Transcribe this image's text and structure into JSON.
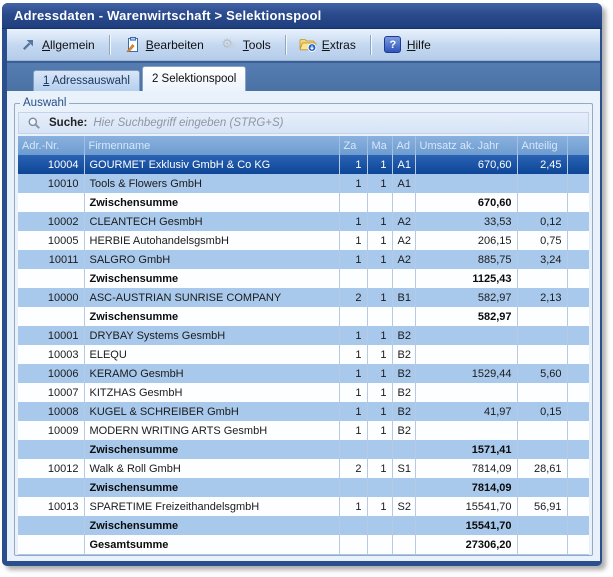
{
  "window": {
    "title": "Adressdaten - Warenwirtschaft > Selektionspool"
  },
  "toolbar": {
    "items": [
      {
        "label": "Allgemein",
        "icon": "arrow-ne-icon",
        "separator_before": false
      },
      {
        "label": "Bearbeiten",
        "icon": "clipboard-icon",
        "separator_before": true
      },
      {
        "label": "Tools",
        "icon": "gears-icon",
        "separator_before": false
      },
      {
        "label": "Extras",
        "icon": "folder-icon",
        "separator_before": true
      },
      {
        "label": "Hilfe",
        "icon": "help-icon",
        "separator_before": true
      }
    ]
  },
  "tabs": [
    {
      "label": "1 Adressauswahl",
      "active": false
    },
    {
      "label": "2 Selektionspool",
      "active": true
    }
  ],
  "groupbox": {
    "legend": "Auswahl"
  },
  "search": {
    "label": "Suche:",
    "placeholder": "Hier Suchbegriff eingeben (STRG+S)"
  },
  "table": {
    "columns": [
      "Adr.-Nr.",
      "Firmenname",
      "Za",
      "Ma",
      "Ad",
      "Umsatz ak. Jahr",
      "Anteilig",
      ""
    ],
    "rows": [
      {
        "kind": "data",
        "selected": true,
        "nr": "10004",
        "name": "GOURMET Exklusiv GmbH & Co KG",
        "za": "1",
        "ma": "1",
        "ad": "A1",
        "umsatz": "670,60",
        "anteilig": "2,45"
      },
      {
        "kind": "data",
        "selected": false,
        "nr": "10010",
        "name": "Tools & Flowers GmbH",
        "za": "1",
        "ma": "1",
        "ad": "A1",
        "umsatz": "",
        "anteilig": ""
      },
      {
        "kind": "subtotal",
        "label": "Zwischensumme",
        "umsatz": "670,60"
      },
      {
        "kind": "data",
        "selected": false,
        "nr": "10002",
        "name": "CLEANTECH GesmbH",
        "za": "1",
        "ma": "1",
        "ad": "A2",
        "umsatz": "33,53",
        "anteilig": "0,12"
      },
      {
        "kind": "data",
        "selected": false,
        "nr": "10005",
        "name": "HERBIE AutohandelsgsmbH",
        "za": "1",
        "ma": "1",
        "ad": "A2",
        "umsatz": "206,15",
        "anteilig": "0,75"
      },
      {
        "kind": "data",
        "selected": false,
        "nr": "10011",
        "name": "SALGRO GmbH",
        "za": "1",
        "ma": "1",
        "ad": "A2",
        "umsatz": "885,75",
        "anteilig": "3,24"
      },
      {
        "kind": "subtotal",
        "label": "Zwischensumme",
        "umsatz": "1125,43"
      },
      {
        "kind": "data",
        "selected": false,
        "nr": "10000",
        "name": "ASC-AUSTRIAN SUNRISE COMPANY",
        "za": "2",
        "ma": "1",
        "ad": "B1",
        "umsatz": "582,97",
        "anteilig": "2,13"
      },
      {
        "kind": "subtotal",
        "label": "Zwischensumme",
        "umsatz": "582,97"
      },
      {
        "kind": "data",
        "selected": false,
        "nr": "10001",
        "name": "DRYBAY Systems GesmbH",
        "za": "1",
        "ma": "1",
        "ad": "B2",
        "umsatz": "",
        "anteilig": ""
      },
      {
        "kind": "data",
        "selected": false,
        "nr": "10003",
        "name": "ELEQU",
        "za": "1",
        "ma": "1",
        "ad": "B2",
        "umsatz": "",
        "anteilig": ""
      },
      {
        "kind": "data",
        "selected": false,
        "nr": "10006",
        "name": "KERAMO GesmbH",
        "za": "1",
        "ma": "1",
        "ad": "B2",
        "umsatz": "1529,44",
        "anteilig": "5,60"
      },
      {
        "kind": "data",
        "selected": false,
        "nr": "10007",
        "name": "KITZHAS GesmbH",
        "za": "1",
        "ma": "1",
        "ad": "B2",
        "umsatz": "",
        "anteilig": ""
      },
      {
        "kind": "data",
        "selected": false,
        "nr": "10008",
        "name": "KUGEL & SCHREIBER GmbH",
        "za": "1",
        "ma": "1",
        "ad": "B2",
        "umsatz": "41,97",
        "anteilig": "0,15"
      },
      {
        "kind": "data",
        "selected": false,
        "nr": "10009",
        "name": "MODERN WRITING ARTS GesmbH",
        "za": "1",
        "ma": "1",
        "ad": "B2",
        "umsatz": "",
        "anteilig": ""
      },
      {
        "kind": "subtotal",
        "label": "Zwischensumme",
        "umsatz": "1571,41"
      },
      {
        "kind": "data",
        "selected": false,
        "nr": "10012",
        "name": "Walk & Roll GmbH",
        "za": "2",
        "ma": "1",
        "ad": "S1",
        "umsatz": "7814,09",
        "anteilig": "28,61"
      },
      {
        "kind": "subtotal",
        "label": "Zwischensumme",
        "umsatz": "7814,09"
      },
      {
        "kind": "data",
        "selected": false,
        "nr": "10013",
        "name": "SPARETIME FreizeithandelsgmbH",
        "za": "1",
        "ma": "1",
        "ad": "S2",
        "umsatz": "15541,70",
        "anteilig": "56,91"
      },
      {
        "kind": "subtotal",
        "label": "Zwischensumme",
        "umsatz": "15541,70"
      },
      {
        "kind": "total",
        "label": "Gesamtsumme",
        "umsatz": "27306,20"
      },
      {
        "kind": "empty"
      }
    ]
  },
  "colors": {
    "titlebar_top": "#4263a6",
    "titlebar_bottom": "#1f3f7e",
    "tabstrip": "#4a72a4",
    "panel": "#e9f1fb",
    "header_top": "#8ab1df",
    "header_bottom": "#6d9cd0",
    "header_text": "#d8e7f8",
    "row_blue": "#a9c9ec",
    "row_white": "#fdfeff",
    "selection_top": "#2a63b4",
    "selection_bottom": "#0e4697",
    "pencil_orange": "#e8922e",
    "folder_yellow": "#f6d878",
    "help_blue": "#2f55b8"
  }
}
